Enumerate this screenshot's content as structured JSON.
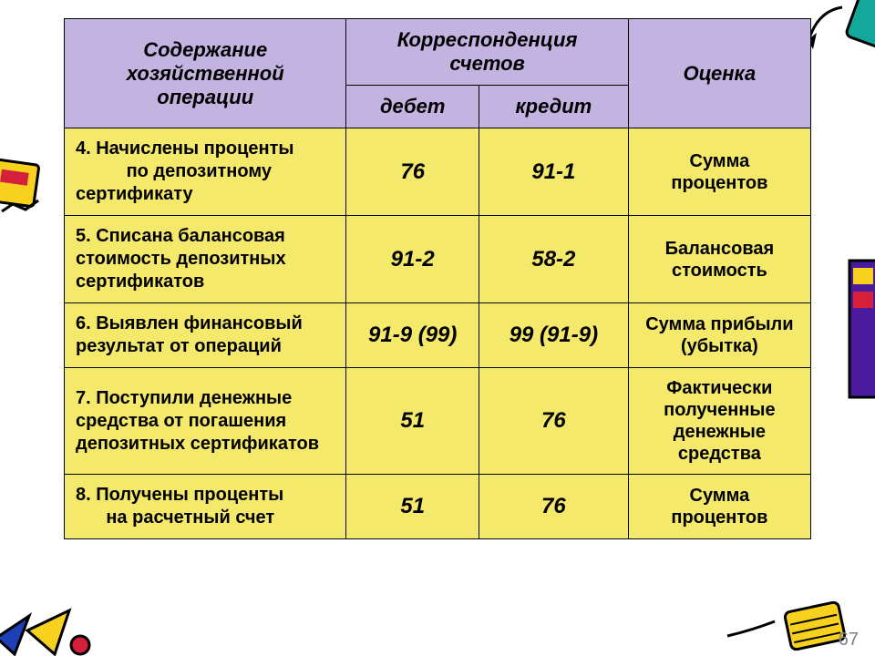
{
  "colors": {
    "header_bg": "#c2b3e0",
    "row_bg": "#f4e96b",
    "border": "#000000",
    "text": "#000000",
    "page_num": "#808080",
    "deco_yellow": "#f7d11e",
    "deco_red": "#d4203a",
    "deco_blue": "#1f3fb8",
    "deco_teal": "#12a99c",
    "deco_purple": "#4a1b9e",
    "deco_black": "#000000"
  },
  "page_number": "67",
  "table": {
    "header": {
      "content": "Содержание хозяйственной операции",
      "correspondence": "Корреспонденция счетов",
      "debit": "дебет",
      "credit": "кредит",
      "assessment": "Оценка"
    },
    "rows": [
      {
        "content_html": "4. Начислены проценты<br>&nbsp;&nbsp;&nbsp;&nbsp;&nbsp;&nbsp;&nbsp;&nbsp;&nbsp;&nbsp;по депозитному<br>сертификату",
        "debit": "76",
        "credit": "91-1",
        "assessment": "Сумма процентов"
      },
      {
        "content_html": "5. Списана балансовая стоимость депозитных сертификатов",
        "debit": "91-2",
        "credit": "58-2",
        "assessment": "Балансовая стоимость"
      },
      {
        "content_html": "6. Выявлен финансовый результат от операций",
        "debit": "91-9 (99)",
        "credit": "99 (91-9)",
        "assessment": "Сумма прибыли (убытка)"
      },
      {
        "content_html": "7. Поступили денежные средства от погашения депозитных сертификатов",
        "debit": "51",
        "credit": "76",
        "assessment": "Фактически полученные денежные средства"
      },
      {
        "content_html": "8. Получены проценты<br>&nbsp;&nbsp;&nbsp;&nbsp;&nbsp;&nbsp;на расчетный счет",
        "debit": "51",
        "credit": "76",
        "assessment": "Сумма процентов"
      }
    ]
  }
}
